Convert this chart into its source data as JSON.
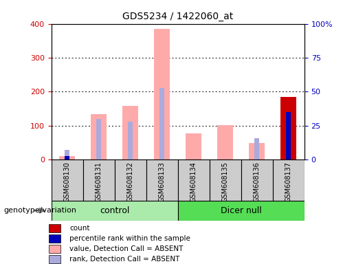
{
  "title": "GDS5234 / 1422060_at",
  "samples": [
    "GSM608130",
    "GSM608131",
    "GSM608132",
    "GSM608133",
    "GSM608134",
    "GSM608135",
    "GSM608136",
    "GSM608137"
  ],
  "value_absent": [
    10,
    135,
    158,
    385,
    77,
    102,
    50,
    0
  ],
  "rank_absent_scaled": [
    28,
    120,
    112,
    212,
    0,
    0,
    63,
    0
  ],
  "count": [
    0,
    0,
    0,
    0,
    0,
    0,
    0,
    185
  ],
  "percentile_rank_scaled": [
    10,
    0,
    0,
    0,
    0,
    0,
    0,
    140
  ],
  "ylim_left": [
    0,
    400
  ],
  "ylim_right": [
    0,
    100
  ],
  "yticks_left": [
    0,
    100,
    200,
    300,
    400
  ],
  "yticks_right": [
    0,
    25,
    50,
    75,
    100
  ],
  "yticklabels_right": [
    "0",
    "25",
    "50",
    "75",
    "100%"
  ],
  "color_count": "#cc0000",
  "color_percentile": "#0000bb",
  "color_value_absent": "#ffaaaa",
  "color_rank_absent": "#aaaadd",
  "color_group_control": "#aaeaaa",
  "color_group_dicernull": "#55dd55",
  "bg_color": "#cccccc",
  "left_tick_color": "#cc0000",
  "right_tick_color": "#0000bb",
  "bar_width": 0.5,
  "narrow_bar_width": 0.15,
  "group_label": "genotype/variation",
  "control_label": "control",
  "dicernull_label": "Dicer null",
  "legend_items": [
    {
      "color": "#cc0000",
      "label": "count"
    },
    {
      "color": "#0000bb",
      "label": "percentile rank within the sample"
    },
    {
      "color": "#ffaaaa",
      "label": "value, Detection Call = ABSENT"
    },
    {
      "color": "#aaaadd",
      "label": "rank, Detection Call = ABSENT"
    }
  ]
}
